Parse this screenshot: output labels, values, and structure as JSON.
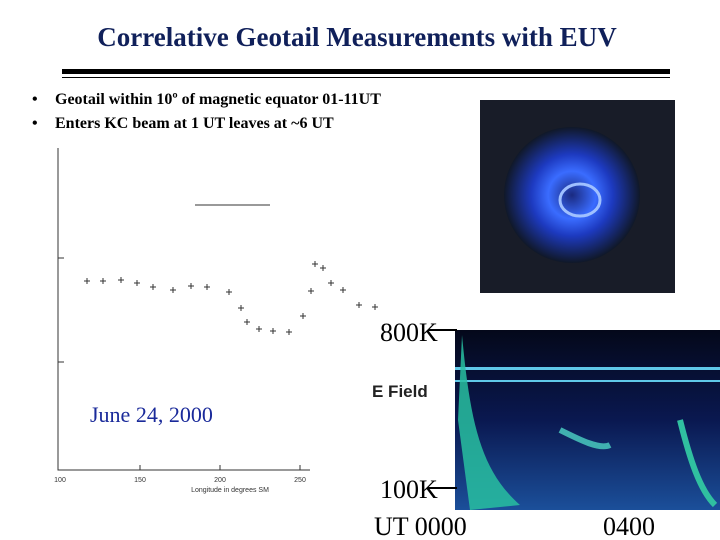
{
  "header": {
    "title": "Correlative Geotail Measurements with EUV"
  },
  "bullets": [
    "Geotail within 10º of magnetic equator 01-11UT",
    "Enters KC beam at 1 UT leaves at ~6 UT"
  ],
  "plot": {
    "xticks": [
      "100",
      "150",
      "200",
      "250"
    ],
    "xlabel": "Longitude in degrees SM",
    "date": "June 24, 2000"
  },
  "spectrogram": {
    "top": "800K",
    "channel": "E Field",
    "bottom": "100K",
    "time_start": "UT 0000",
    "time_mid": "0400"
  }
}
